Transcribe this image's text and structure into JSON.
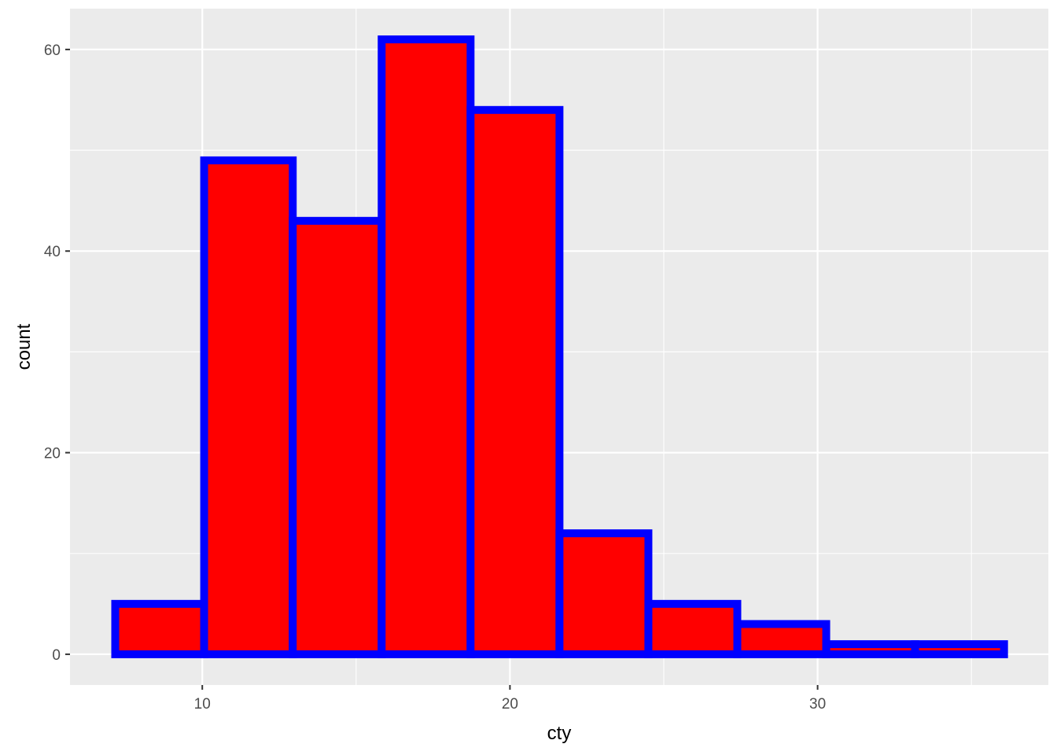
{
  "chart_data": {
    "type": "bar",
    "subtype": "histogram",
    "xlabel": "cty",
    "ylabel": "count",
    "bins": [
      {
        "x0": 7.17,
        "x1": 10.06,
        "count": 5
      },
      {
        "x0": 10.06,
        "x1": 12.94,
        "count": 49
      },
      {
        "x0": 12.94,
        "x1": 15.83,
        "count": 43
      },
      {
        "x0": 15.83,
        "x1": 18.72,
        "count": 61
      },
      {
        "x0": 18.72,
        "x1": 21.61,
        "count": 54
      },
      {
        "x0": 21.61,
        "x1": 24.5,
        "count": 12
      },
      {
        "x0": 24.5,
        "x1": 27.39,
        "count": 5
      },
      {
        "x0": 27.39,
        "x1": 30.28,
        "count": 3
      },
      {
        "x0": 30.28,
        "x1": 33.17,
        "count": 1
      },
      {
        "x0": 33.17,
        "x1": 36.06,
        "count": 1
      }
    ],
    "xlim": [
      5.7,
      37.5
    ],
    "ylim": [
      -3.05,
      64.05
    ],
    "x_ticks": [
      10,
      20,
      30
    ],
    "x_tick_labels": [
      "10",
      "20",
      "30"
    ],
    "x_minor_ticks": [
      15,
      25,
      35
    ],
    "y_ticks": [
      0,
      20,
      40,
      60
    ],
    "y_tick_labels": [
      "0",
      "20",
      "40",
      "60"
    ],
    "y_minor_ticks": [
      10,
      30,
      50
    ],
    "grid": true,
    "colors": {
      "fill": "#ff0000",
      "outline": "#0000ff",
      "panel_background": "#ebebeb",
      "grid_line": "#ffffff",
      "tick_text": "#4d4d4d",
      "title_text": "#000000"
    }
  }
}
